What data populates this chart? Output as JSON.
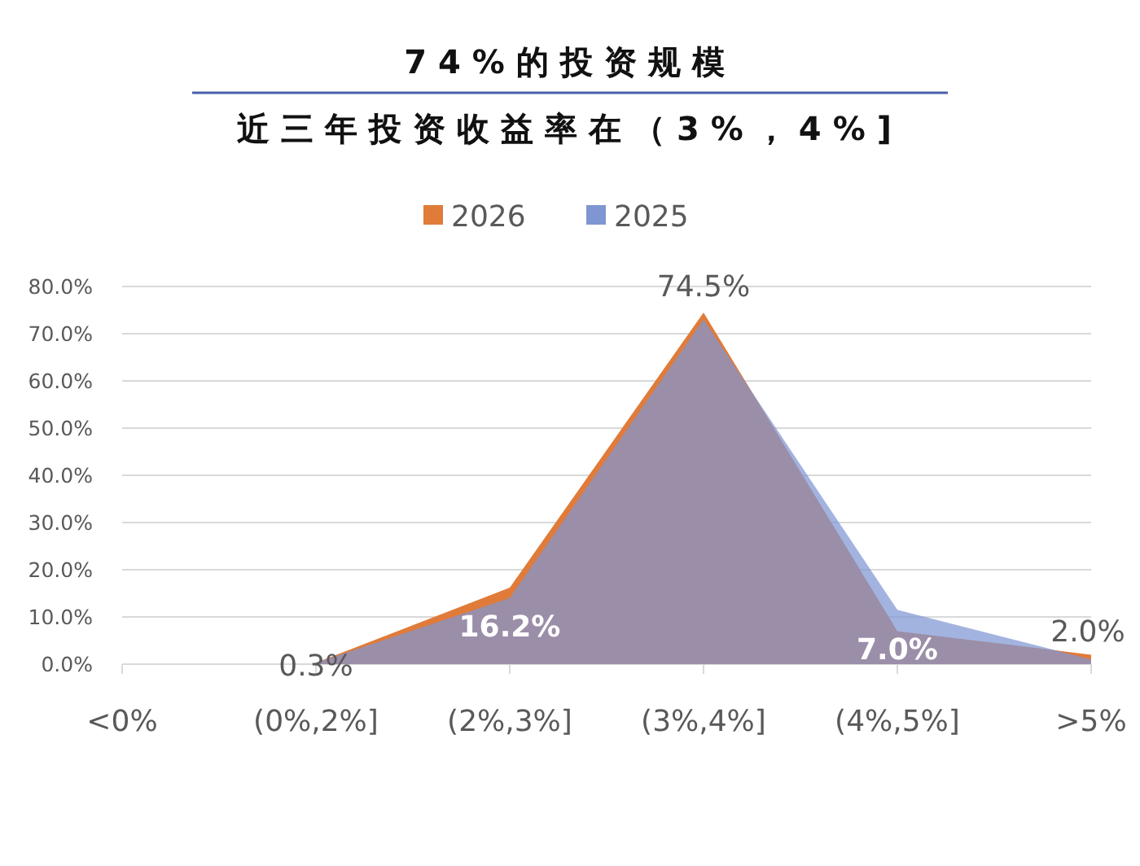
{
  "chart_data": {
    "type": "area",
    "title": "74%的投资规模",
    "subtitle": "近三年投资收益率在（3%，4%]",
    "categories": [
      "<0%",
      "(0%,2%]",
      "(2%,3%]",
      "(3%,4%]",
      "(4%,5%]",
      ">5%"
    ],
    "series": [
      {
        "name": "2026",
        "color": "#e07b39",
        "values": [
          null,
          0.3,
          16.2,
          74.5,
          7.0,
          2.0
        ],
        "value_labels": [
          null,
          "0.3%",
          "16.2%",
          "74.5%",
          "7.0%",
          "2.0%"
        ]
      },
      {
        "name": "2025",
        "color": "#7f96d2",
        "values": [
          null,
          0.3,
          14,
          73,
          11.5,
          1.0
        ]
      }
    ],
    "ylim": [
      0,
      80
    ],
    "yticks": [
      {
        "value": 0,
        "label": "0.0%"
      },
      {
        "value": 10,
        "label": "10.0%"
      },
      {
        "value": 20,
        "label": "20.0%"
      },
      {
        "value": 30,
        "label": "30.0%"
      },
      {
        "value": 40,
        "label": "40.0%"
      },
      {
        "value": 50,
        "label": "50.0%"
      },
      {
        "value": 60,
        "label": "60.0%"
      },
      {
        "value": 70,
        "label": "70.0%"
      },
      {
        "value": 80,
        "label": "80.0%"
      }
    ],
    "grid": "y",
    "legend": "top"
  }
}
